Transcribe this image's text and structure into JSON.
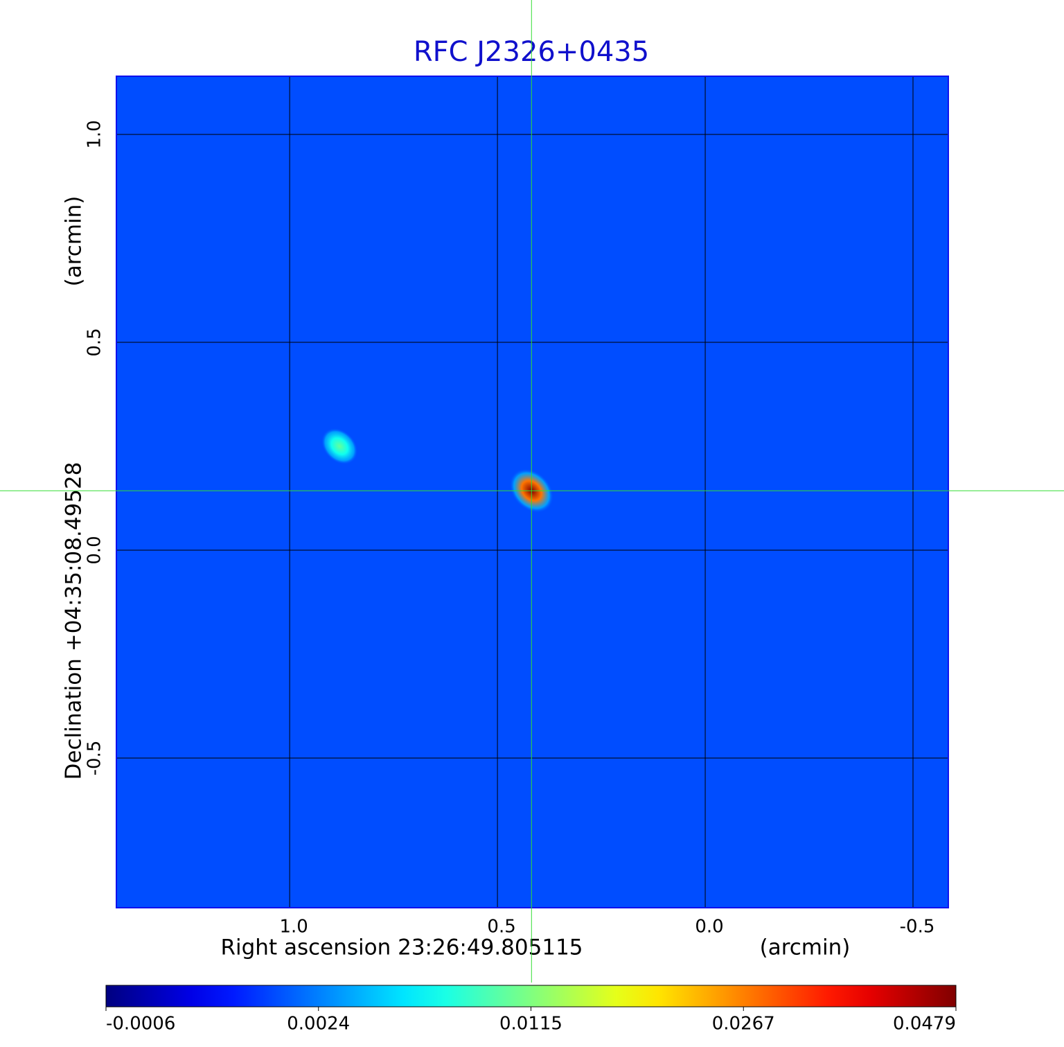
{
  "chart_data": {
    "type": "image",
    "title": "RFC J2326+0435",
    "x_label": "Right ascension  23:26:49.805115",
    "x_unit": "(arcmin)",
    "y_label": "Declination  +04:35:08.49528",
    "y_unit": "(arcmin)",
    "xlim": [
      1.417,
      -0.585
    ],
    "ylim": [
      -0.86,
      1.14
    ],
    "xticks": [
      {
        "value": 1,
        "label": "1.0"
      },
      0.5,
      {
        "value": 0,
        "label": "0.0"
      },
      -0.5
    ],
    "yticks": [
      {
        "value": 1,
        "label": "1.0"
      },
      0.5,
      {
        "value": 0,
        "label": "0.0"
      },
      -0.5
    ],
    "grid": true,
    "crosshair": {
      "x": 0.418,
      "y": 0.143,
      "color": "#33dd33"
    },
    "sources": {
      "x": [
        0.418,
        0.88
      ],
      "y": [
        0.143,
        0.25
      ],
      "peak": [
        0.0479,
        0.0105
      ]
    },
    "colorbar": {
      "ticks": [
        -0.0006,
        0.0024,
        0.0115,
        0.0267,
        0.0479
      ]
    }
  }
}
